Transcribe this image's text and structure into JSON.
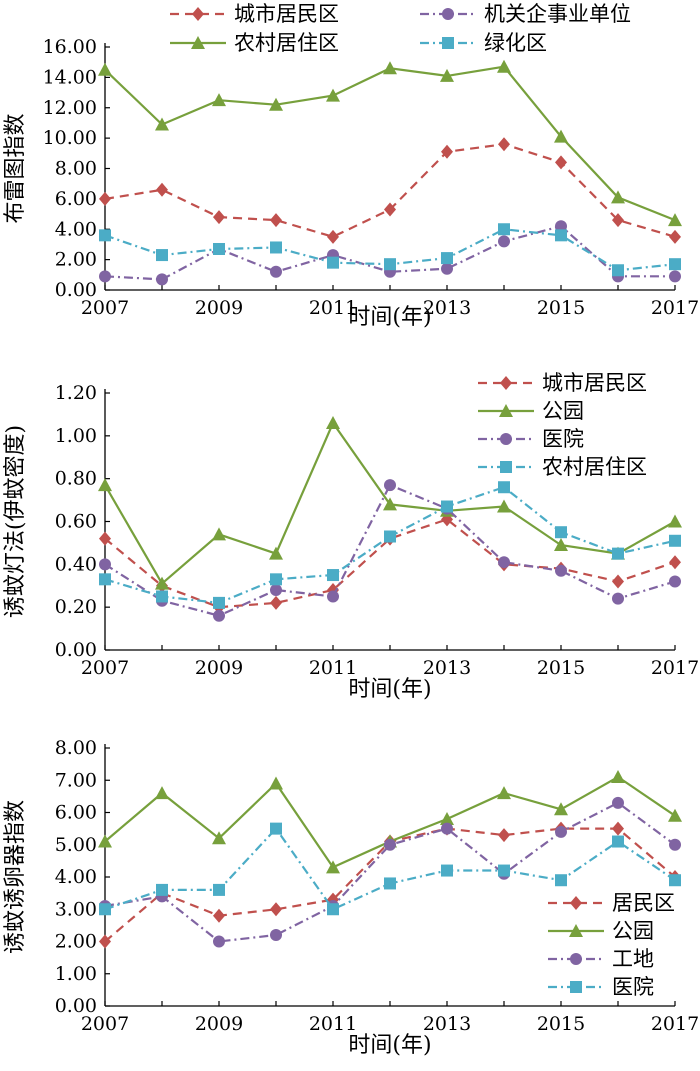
{
  "chart_data": [
    {
      "type": "line",
      "title": "",
      "xlabel": "时间(年)",
      "ylabel": "布雷图指数",
      "ylim": [
        0,
        16
      ],
      "yticks": [
        "0.00",
        "2.00",
        "4.00",
        "6.00",
        "8.00",
        "10.00",
        "12.00",
        "14.00",
        "16.00"
      ],
      "x": [
        2007,
        2008,
        2009,
        2010,
        2011,
        2012,
        2013,
        2014,
        2015,
        2016,
        2017
      ],
      "xtick_labels": [
        "2007",
        "2009",
        "2011",
        "2013",
        "2015",
        "2017"
      ],
      "legend_position": "top",
      "series": [
        {
          "name": "城市居民区",
          "color": "#c0504d",
          "marker": "diamond",
          "dash": "dash",
          "values": [
            6.0,
            6.6,
            4.8,
            4.6,
            3.5,
            5.3,
            9.1,
            9.6,
            8.4,
            4.6,
            3.5
          ]
        },
        {
          "name": "机关企事业单位",
          "color": "#8064a2",
          "marker": "circle",
          "dash": "dashdot",
          "values": [
            0.9,
            0.7,
            2.7,
            1.2,
            2.3,
            1.2,
            1.4,
            3.2,
            4.2,
            0.9,
            0.9
          ]
        },
        {
          "name": "农村居住区",
          "color": "#77a03c",
          "marker": "triangle",
          "dash": "solid",
          "values": [
            14.5,
            10.9,
            12.5,
            12.2,
            12.8,
            14.6,
            14.1,
            14.7,
            10.1,
            6.1,
            4.6
          ]
        },
        {
          "name": "绿化区",
          "color": "#4bacc6",
          "marker": "square",
          "dash": "dashdot",
          "values": [
            3.6,
            2.3,
            2.7,
            2.8,
            1.8,
            1.7,
            2.1,
            4.0,
            3.6,
            1.3,
            1.7
          ]
        }
      ]
    },
    {
      "type": "line",
      "title": "",
      "xlabel": "时间(年)",
      "ylabel": "诱蚊灯法(伊蚊密度)",
      "ylim": [
        0,
        1.2
      ],
      "yticks": [
        "0.00",
        "0.20",
        "0.40",
        "0.60",
        "0.80",
        "1.00",
        "1.20"
      ],
      "x": [
        2007,
        2008,
        2009,
        2010,
        2011,
        2012,
        2013,
        2014,
        2015,
        2016,
        2017
      ],
      "xtick_labels": [
        "2007",
        "2009",
        "2011",
        "2013",
        "2015",
        "2017"
      ],
      "legend_position": "top-right",
      "series": [
        {
          "name": "城市居民区",
          "color": "#c0504d",
          "marker": "diamond",
          "dash": "dash",
          "values": [
            0.52,
            0.3,
            0.2,
            0.22,
            0.28,
            0.52,
            0.61,
            0.4,
            0.38,
            0.32,
            0.41
          ]
        },
        {
          "name": "公园",
          "color": "#77a03c",
          "marker": "triangle",
          "dash": "solid",
          "values": [
            0.77,
            0.31,
            0.54,
            0.45,
            1.06,
            0.68,
            0.65,
            0.67,
            0.49,
            0.45,
            0.6
          ]
        },
        {
          "name": "医院",
          "color": "#8064a2",
          "marker": "circle",
          "dash": "dashdot",
          "values": [
            0.4,
            0.23,
            0.16,
            0.28,
            0.25,
            0.77,
            0.66,
            0.41,
            0.37,
            0.24,
            0.32
          ]
        },
        {
          "name": "农村居住区",
          "color": "#4bacc6",
          "marker": "square",
          "dash": "dashdot",
          "values": [
            0.33,
            0.25,
            0.22,
            0.33,
            0.35,
            0.53,
            0.67,
            0.76,
            0.55,
            0.45,
            0.51
          ]
        }
      ]
    },
    {
      "type": "line",
      "title": "",
      "xlabel": "时间(年)",
      "ylabel": "诱蚊诱卵器指数",
      "ylim": [
        0,
        8
      ],
      "yticks": [
        "0.00",
        "1.00",
        "2.00",
        "3.00",
        "4.00",
        "5.00",
        "6.00",
        "7.00",
        "8.00"
      ],
      "x": [
        2007,
        2008,
        2009,
        2010,
        2011,
        2012,
        2013,
        2014,
        2015,
        2016,
        2017
      ],
      "xtick_labels": [
        "2007",
        "2009",
        "2011",
        "2013",
        "2015",
        "2017"
      ],
      "legend_position": "bottom-right",
      "series": [
        {
          "name": "居民区",
          "color": "#c0504d",
          "marker": "diamond",
          "dash": "dash",
          "values": [
            2.0,
            3.5,
            2.8,
            3.0,
            3.3,
            5.1,
            5.5,
            5.3,
            5.5,
            5.5,
            4.0
          ]
        },
        {
          "name": "公园",
          "color": "#77a03c",
          "marker": "triangle",
          "dash": "solid",
          "values": [
            5.1,
            6.6,
            5.2,
            6.9,
            4.3,
            5.1,
            5.8,
            6.6,
            6.1,
            7.1,
            5.9
          ]
        },
        {
          "name": "工地",
          "color": "#8064a2",
          "marker": "circle",
          "dash": "dashdot",
          "values": [
            3.1,
            3.4,
            2.0,
            2.2,
            3.1,
            5.0,
            5.5,
            4.1,
            5.4,
            6.3,
            5.0
          ]
        },
        {
          "name": "医院",
          "color": "#4bacc6",
          "marker": "square",
          "dash": "dashdot",
          "values": [
            3.0,
            3.6,
            3.6,
            5.5,
            3.0,
            3.8,
            4.2,
            4.2,
            3.9,
            5.1,
            3.9
          ]
        }
      ]
    }
  ]
}
